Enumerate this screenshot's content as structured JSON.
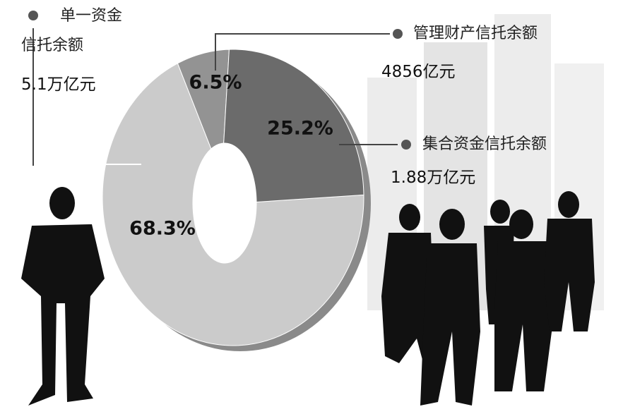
{
  "chart_data": {
    "type": "pie",
    "categories": [
      "单一资金信托余额",
      "管理财产信托余额",
      "集合资金信托余额"
    ],
    "values": [
      68.3,
      6.5,
      25.2
    ],
    "value_labels": [
      "68.3%",
      "6.5%",
      "25.2%"
    ],
    "amounts": [
      "5.1万亿元",
      "4856亿元",
      "1.88万亿元"
    ],
    "colors": [
      "#cbcbcb",
      "#939393",
      "#6b6b6b"
    ]
  }
}
